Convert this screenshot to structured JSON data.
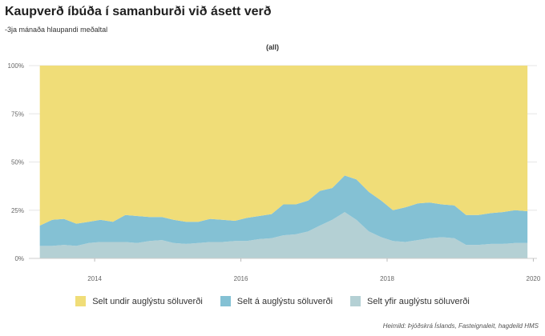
{
  "header": {
    "title": "Kaupverð íbúða í samanburði við ásett verð",
    "subtitle": "-3ja mánaða hlaupandi meðaltal",
    "panel_label": "(all)"
  },
  "legend": [
    {
      "label": "Selt undir auglýstu söluverði",
      "color": "#f0dd78"
    },
    {
      "label": "Selt á auglýstu söluverði",
      "color": "#84c1d4"
    },
    {
      "label": "Selt yfir auglýstu söluverði",
      "color": "#b4d0d4"
    }
  ],
  "source": "Heimild: Þjóðskrá Íslands, Fasteignaleit, hagdeild HMS",
  "chart_data": {
    "type": "area",
    "stacked": true,
    "title": "Kaupverð íbúða í samanburði við ásett verð",
    "subtitle": "-3ja mánaða hlaupandi meðaltal",
    "xlabel": "",
    "ylabel": "",
    "x_ticks": [
      2014,
      2016,
      2018,
      2020
    ],
    "y_ticks": [
      "0%",
      "25%",
      "50%",
      "75%",
      "100%"
    ],
    "xlim": [
      2013.1,
      2020.05
    ],
    "ylim": [
      0,
      100
    ],
    "x": [
      2013.25,
      2013.42,
      2013.58,
      2013.75,
      2013.92,
      2014.08,
      2014.25,
      2014.42,
      2014.58,
      2014.75,
      2014.92,
      2015.08,
      2015.25,
      2015.42,
      2015.58,
      2015.75,
      2015.92,
      2016.08,
      2016.25,
      2016.42,
      2016.58,
      2016.75,
      2016.92,
      2017.08,
      2017.25,
      2017.42,
      2017.58,
      2017.75,
      2017.92,
      2018.08,
      2018.25,
      2018.42,
      2018.58,
      2018.75,
      2018.92,
      2019.08,
      2019.25,
      2019.42,
      2019.58,
      2019.75,
      2019.92
    ],
    "series": [
      {
        "name": "Selt yfir auglýstu söluverði",
        "values": [
          6.5,
          6.5,
          7,
          6.5,
          8,
          8.5,
          8.5,
          8.5,
          8,
          9,
          9.5,
          8,
          7.5,
          8,
          8.5,
          8.5,
          9,
          9,
          10,
          10.5,
          12,
          12.5,
          14,
          17,
          20,
          24,
          20,
          14,
          11,
          9,
          8.5,
          9.5,
          10.5,
          11,
          10.5,
          7,
          7,
          7.5,
          7.5,
          8,
          8
        ]
      },
      {
        "name": "Selt á auglýstu söluverði",
        "values": [
          10.5,
          13.5,
          13.5,
          11.5,
          11,
          11.5,
          10.5,
          14,
          14,
          12.5,
          12,
          12,
          11.5,
          11,
          12,
          11.5,
          10.5,
          12,
          12,
          12.5,
          16,
          15.5,
          16,
          18,
          16.5,
          19,
          21,
          20.5,
          19,
          16,
          18,
          19,
          18.5,
          17,
          17,
          15.5,
          15.5,
          16,
          16.5,
          17,
          16.5
        ]
      },
      {
        "name": "Selt undir auglýstu söluverði",
        "values": [
          83,
          80,
          79.5,
          82,
          81,
          80,
          81,
          77.5,
          78,
          78.5,
          78.5,
          80,
          81,
          81,
          79.5,
          80,
          80.5,
          79,
          78,
          77,
          72,
          72,
          70,
          65,
          63.5,
          57,
          59,
          65.5,
          70,
          75,
          73.5,
          71.5,
          71,
          72,
          72.5,
          77.5,
          77.5,
          76.5,
          76,
          75,
          75.5
        ]
      }
    ]
  }
}
